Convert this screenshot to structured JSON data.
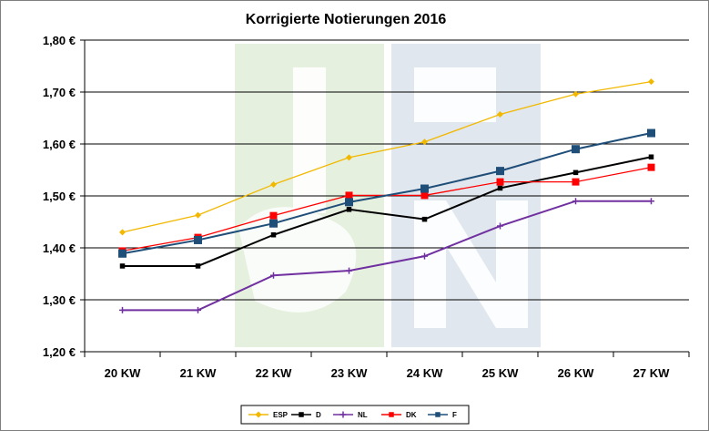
{
  "chart_data": {
    "type": "line",
    "title": "Korrigierte Notierungen 2016",
    "categories": [
      "20 KW",
      "21 KW",
      "22 KW",
      "23 KW",
      "24 KW",
      "25 KW",
      "26 KW",
      "27 KW"
    ],
    "ylim": [
      1.2,
      1.8
    ],
    "yticks": [
      1.2,
      1.3,
      1.4,
      1.5,
      1.6,
      1.7,
      1.8
    ],
    "ytick_labels": [
      "1,20 €",
      "1,30 €",
      "1,40 €",
      "1,50 €",
      "1,60 €",
      "1,70 €",
      "1,80 €"
    ],
    "grid": "horizontal",
    "legend_position": "bottom",
    "series": [
      {
        "name": "ESP",
        "color": "#f2b800",
        "marker": "diamond",
        "values": [
          1.43,
          1.463,
          1.522,
          1.574,
          1.604,
          1.657,
          1.696,
          1.72
        ]
      },
      {
        "name": "D",
        "color": "#000000",
        "marker": "square-small",
        "values": [
          1.365,
          1.365,
          1.425,
          1.474,
          1.455,
          1.515,
          1.545,
          1.575
        ]
      },
      {
        "name": "NL",
        "color": "#7030a0",
        "marker": "cross",
        "values": [
          1.28,
          1.28,
          1.347,
          1.356,
          1.384,
          1.442,
          1.49,
          1.49
        ]
      },
      {
        "name": "DK",
        "color": "#ff0000",
        "marker": "square",
        "values": [
          1.394,
          1.42,
          1.462,
          1.501,
          1.501,
          1.527,
          1.527,
          1.555
        ]
      },
      {
        "name": "F",
        "color": "#1f4e79",
        "marker": "square-large",
        "values": [
          1.389,
          1.415,
          1.447,
          1.488,
          1.514,
          1.548,
          1.59,
          1.621
        ]
      }
    ]
  }
}
